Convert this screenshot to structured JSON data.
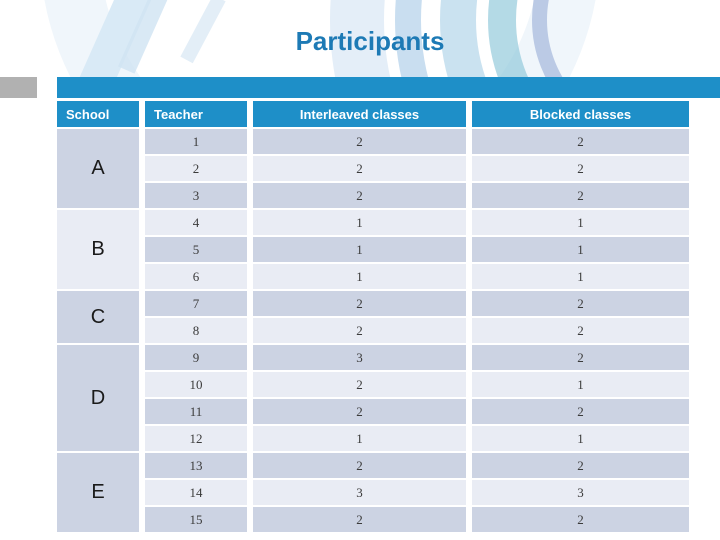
{
  "slide": {
    "title": "Participants",
    "colors": {
      "accent_blue": "#1e8fc8",
      "title_blue": "#1d7ab5",
      "band_dark": "#ccd3e3",
      "band_light": "#e9ecf4",
      "gray_block": "#b1b1b1"
    }
  },
  "table": {
    "columns": [
      "School",
      "Teacher",
      "Interleaved classes",
      "Blocked classes"
    ],
    "groups": [
      {
        "school": "A",
        "shade": "dark",
        "rows": [
          {
            "teacher": "1",
            "interleaved": "2",
            "blocked": "2"
          },
          {
            "teacher": "2",
            "interleaved": "2",
            "blocked": "2"
          },
          {
            "teacher": "3",
            "interleaved": "2",
            "blocked": "2"
          }
        ]
      },
      {
        "school": "B",
        "shade": "light",
        "rows": [
          {
            "teacher": "4",
            "interleaved": "1",
            "blocked": "1"
          },
          {
            "teacher": "5",
            "interleaved": "1",
            "blocked": "1"
          },
          {
            "teacher": "6",
            "interleaved": "1",
            "blocked": "1"
          }
        ]
      },
      {
        "school": "C",
        "shade": "dark",
        "rows": [
          {
            "teacher": "7",
            "interleaved": "2",
            "blocked": "2"
          },
          {
            "teacher": "8",
            "interleaved": "2",
            "blocked": "2"
          }
        ]
      },
      {
        "school": "D",
        "shade": "dark",
        "rows": [
          {
            "teacher": "9",
            "interleaved": "3",
            "blocked": "2"
          },
          {
            "teacher": "10",
            "interleaved": "2",
            "blocked": "1"
          },
          {
            "teacher": "11",
            "interleaved": "2",
            "blocked": "2"
          },
          {
            "teacher": "12",
            "interleaved": "1",
            "blocked": "1"
          }
        ]
      },
      {
        "school": "E",
        "shade": "dark",
        "rows": [
          {
            "teacher": "13",
            "interleaved": "2",
            "blocked": "2"
          },
          {
            "teacher": "14",
            "interleaved": "3",
            "blocked": "3"
          },
          {
            "teacher": "15",
            "interleaved": "2",
            "blocked": "2"
          }
        ]
      }
    ]
  }
}
